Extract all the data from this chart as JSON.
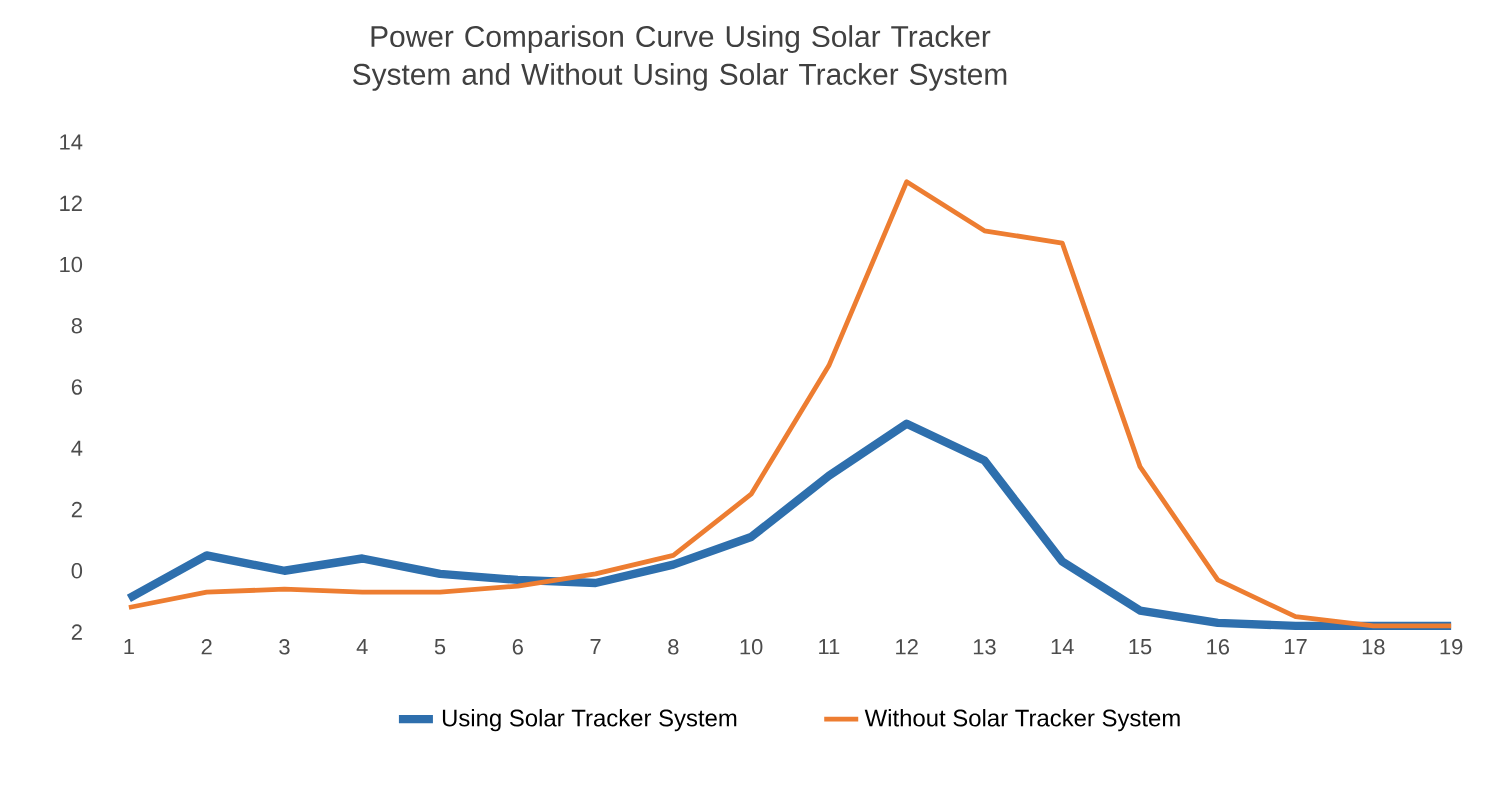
{
  "chart_data": {
    "type": "line",
    "title": "Power Comparison Curve Using Solar Tracker System and Without Using Solar Tracker System",
    "categories": [
      "1",
      "2",
      "3",
      "4",
      "5",
      "6",
      "7",
      "8",
      "10",
      "11",
      "12",
      "13",
      "14",
      "15",
      "16",
      "17",
      "18",
      "19"
    ],
    "series": [
      {
        "name": "Using Solar Tracker System",
        "color": "#2e6fad",
        "values": [
          -0.9,
          0.5,
          0,
          0.4,
          -0.1,
          -0.3,
          -0.4,
          0.2,
          1.1,
          3.1,
          4.8,
          3.6,
          0.3,
          -1.3,
          -1.7,
          -1.8,
          -1.8,
          -1.8
        ]
      },
      {
        "name": "Without Solar Tracker System",
        "color": "#ed7d31",
        "values": [
          -1.2,
          -0.7,
          -0.6,
          -0.7,
          -0.7,
          -0.5,
          -0.1,
          0.5,
          2.5,
          6.7,
          12.7,
          11.1,
          10.7,
          3.4,
          -0.3,
          -1.5,
          -1.8,
          -1.8
        ]
      }
    ],
    "ylim": [
      -2,
      14
    ],
    "yticks": [
      {
        "value": -2,
        "label": "2"
      },
      0,
      2,
      4,
      6,
      8,
      10,
      12,
      14
    ],
    "grid": false,
    "legend": "bottom",
    "line_style": "solid",
    "marker": "none"
  }
}
